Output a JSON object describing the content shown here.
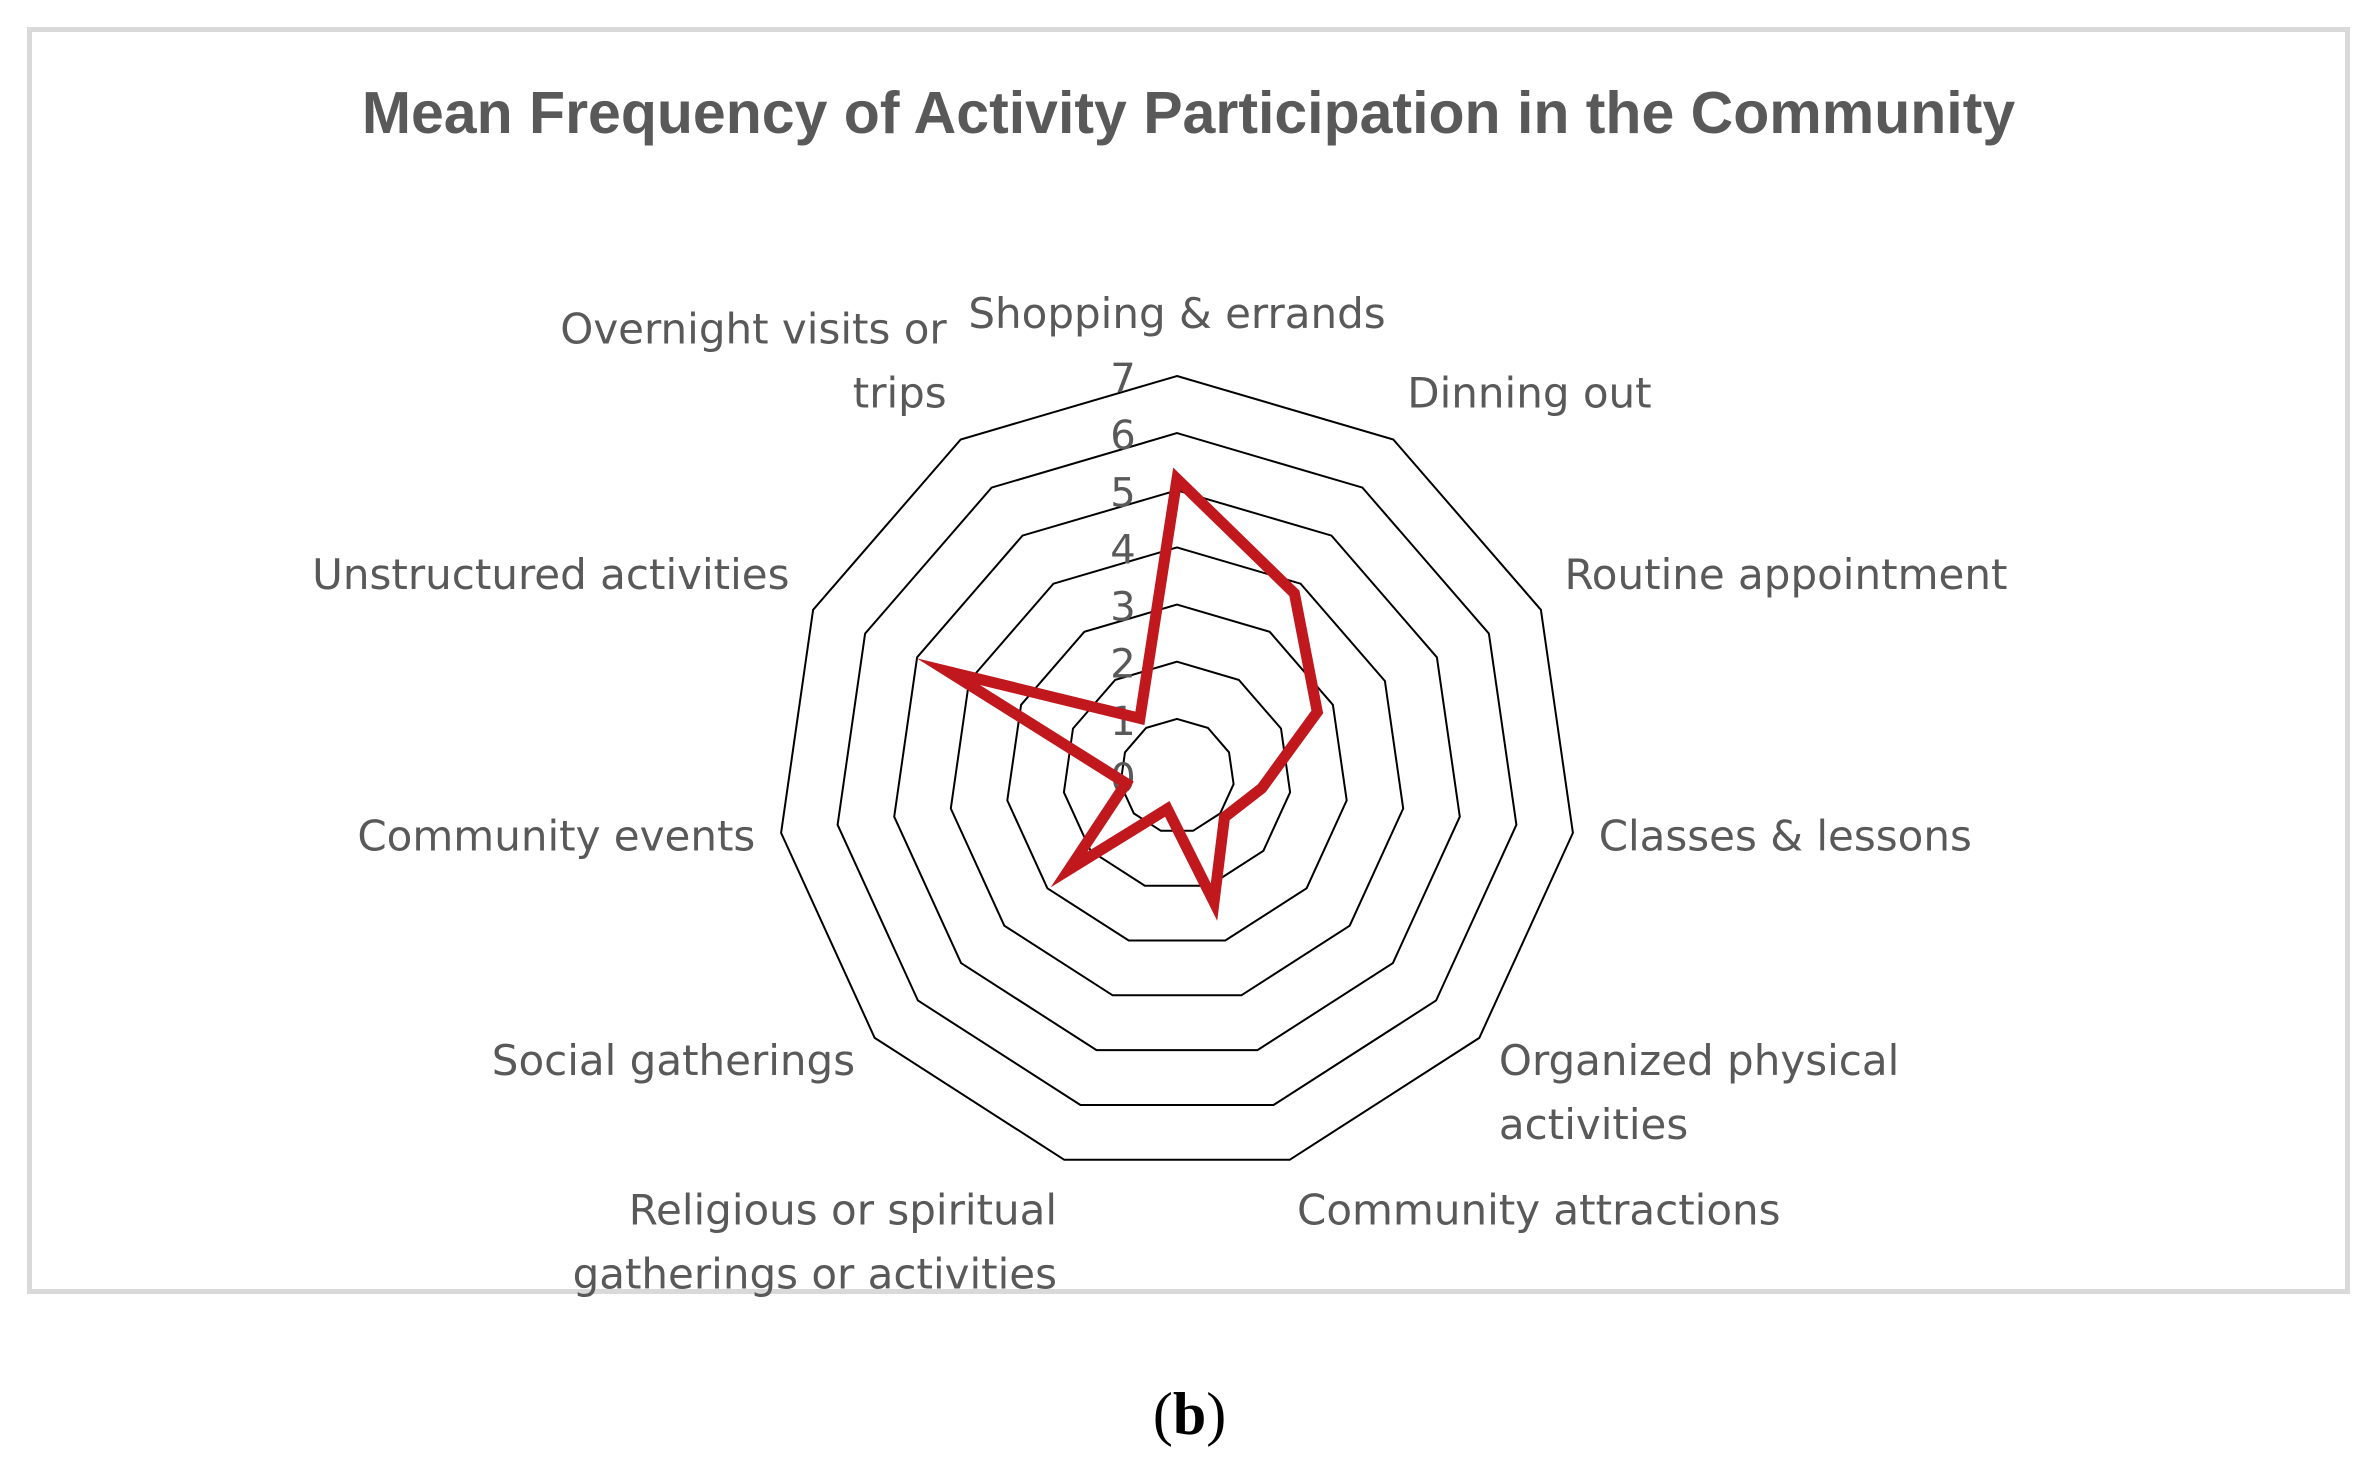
{
  "chart_data": {
    "type": "radar",
    "title": "Mean Frequency of Activity Participation in the Community",
    "categories": [
      "Shopping & errands",
      "Dinning out",
      "Routine appointment",
      "Classes & lessons",
      "Organized physical activities",
      "Community attractions",
      "Religious or spiritual gatherings or activities",
      "Social gatherings",
      "Community events",
      "Unstructured activities",
      "Overnight visits or trips"
    ],
    "series": [
      {
        "values": [
          5.2,
          3.8,
          2.7,
          1.5,
          1.1,
          2.3,
          0.6,
          2.5,
          0.9,
          4.4,
          1.2
        ]
      }
    ],
    "r_ticks": [
      "0",
      "1",
      "2",
      "3",
      "4",
      "5",
      "6",
      "7"
    ],
    "rlim": [
      0,
      7
    ],
    "grid": true,
    "legend": "none",
    "series_color": "#c0181d"
  },
  "caption": {
    "open": "(",
    "letter": "b",
    "close": ")"
  }
}
